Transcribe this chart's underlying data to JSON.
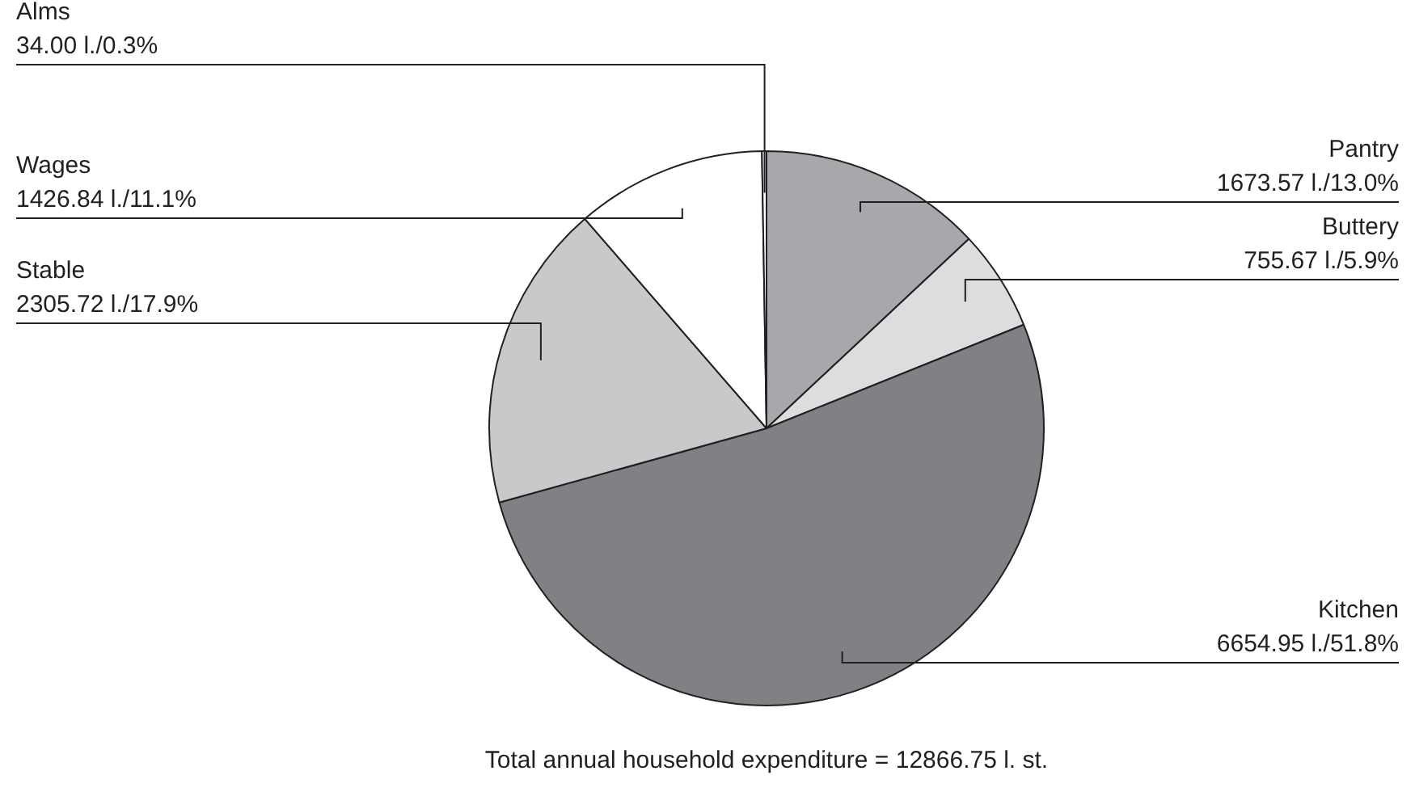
{
  "chart_data": {
    "type": "pie",
    "categories": [
      "Pantry",
      "Buttery",
      "Kitchen",
      "Stable",
      "Wages",
      "Alms"
    ],
    "values": [
      1673.57,
      755.67,
      6654.95,
      2305.72,
      1426.84,
      34.0
    ],
    "value_labels": [
      "1673.57 l./13.0%",
      "755.67 l./5.9%",
      "6654.95 l./51.8%",
      "2305.72 l./17.9%",
      "1426.84 l./11.1%",
      "34.00 l./0.3%"
    ],
    "colors": [
      "#a7a8ab",
      "#dcddde",
      "#808184",
      "#c8c9cb",
      "#ffffff",
      "#ffffff"
    ],
    "annotations": [
      "Total annual household expenditure = 12866.75 l. st."
    ],
    "legend": false
  }
}
